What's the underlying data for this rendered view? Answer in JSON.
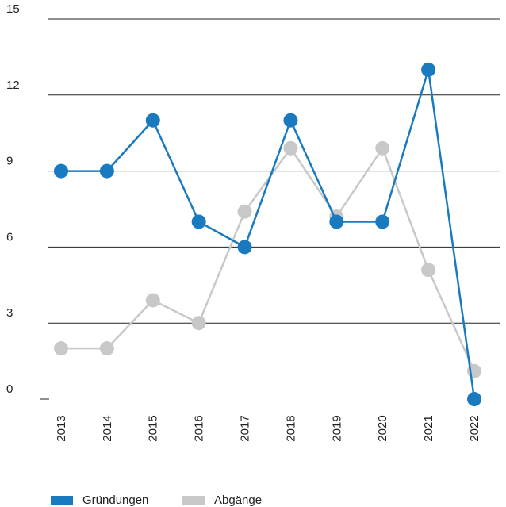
{
  "chart_data": {
    "type": "line",
    "categories": [
      "2013",
      "2014",
      "2015",
      "2016",
      "2017",
      "2018",
      "2019",
      "2020",
      "2021",
      "2022"
    ],
    "series": [
      {
        "name": "Gründungen",
        "color": "#1a7ac0",
        "values": [
          9,
          9,
          11,
          7,
          6,
          11,
          7,
          7,
          13,
          0
        ]
      },
      {
        "name": "Abgänge",
        "color": "#c8c8c8",
        "values": [
          2,
          2,
          3.9,
          3,
          7.4,
          9.9,
          7.2,
          9.9,
          5.1,
          1.1
        ]
      }
    ],
    "ylim": [
      0,
      15
    ],
    "yticks": [
      0,
      3,
      6,
      9,
      12,
      15
    ],
    "grid": true
  }
}
